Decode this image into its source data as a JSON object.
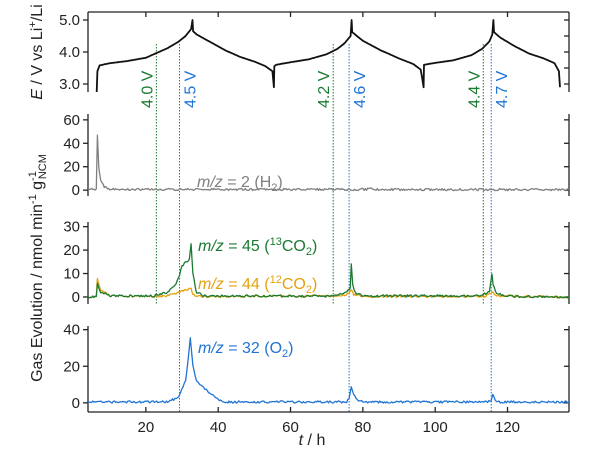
{
  "chart_data": {
    "type": "line",
    "xlabel": "t / h",
    "xlim": [
      4,
      137
    ],
    "xticks": [
      20,
      40,
      60,
      80,
      100,
      120
    ],
    "shared_ylabel": "Gas Evolution / nmol min-1 g-1 NCM",
    "colors": {
      "voltage": "#111111",
      "h2": "#7f7f7f",
      "co2_13": "#1b7a32",
      "co2_12": "#e3a20f",
      "o2": "#1f74d4",
      "green_marker": "#1b7a32",
      "blue_marker": "#1f74d4"
    },
    "markers": [
      {
        "label": "4.0 V",
        "t": 22.9,
        "color": "green"
      },
      {
        "label": "4.5 V",
        "t": 29.3,
        "color": "blue"
      },
      {
        "label": "4.2 V",
        "t": 71.8,
        "color": "green"
      },
      {
        "label": "4.6 V",
        "t": 76.2,
        "color": "blue"
      },
      {
        "label": "4.4 V",
        "t": 113.3,
        "color": "green"
      },
      {
        "label": "4.7 V",
        "t": 115.5,
        "color": "blue"
      }
    ],
    "panels": [
      {
        "ylabel": "E / V vs Li+/Li",
        "ylim": [
          2.75,
          5.25
        ],
        "yticks": [
          "3.0",
          "4.0",
          "5.0"
        ],
        "series": [
          {
            "key": "voltage",
            "points": [
              [
                6.4,
                2.75
              ],
              [
                6.6,
                3.4
              ],
              [
                7.2,
                3.58
              ],
              [
                10,
                3.65
              ],
              [
                15,
                3.72
              ],
              [
                20,
                3.82
              ],
              [
                23,
                3.97
              ],
              [
                26,
                4.12
              ],
              [
                29,
                4.32
              ],
              [
                31,
                4.5
              ],
              [
                32.5,
                4.72
              ],
              [
                32.9,
                5.0
              ],
              [
                33.05,
                4.65
              ],
              [
                34,
                4.55
              ],
              [
                38,
                4.3
              ],
              [
                42,
                4.05
              ],
              [
                46,
                3.85
              ],
              [
                50,
                3.7
              ],
              [
                53,
                3.56
              ],
              [
                55,
                3.4
              ],
              [
                55.4,
                2.9
              ],
              [
                55.5,
                3.55
              ],
              [
                56,
                3.6
              ],
              [
                60,
                3.68
              ],
              [
                65,
                3.77
              ],
              [
                70,
                3.93
              ],
              [
                73,
                4.1
              ],
              [
                75,
                4.28
              ],
              [
                76.6,
                4.5
              ],
              [
                76.9,
                5.0
              ],
              [
                77.05,
                4.62
              ],
              [
                80,
                4.35
              ],
              [
                85,
                4.05
              ],
              [
                90,
                3.8
              ],
              [
                94,
                3.62
              ],
              [
                96,
                3.45
              ],
              [
                96.8,
                2.9
              ],
              [
                96.9,
                3.6
              ],
              [
                100,
                3.66
              ],
              [
                105,
                3.74
              ],
              [
                110,
                3.9
              ],
              [
                113,
                4.1
              ],
              [
                115,
                4.33
              ],
              [
                115.8,
                4.55
              ],
              [
                116.1,
                5.0
              ],
              [
                116.25,
                4.62
              ],
              [
                118,
                4.45
              ],
              [
                122,
                4.18
              ],
              [
                126,
                3.95
              ],
              [
                130,
                3.8
              ],
              [
                133,
                3.65
              ],
              [
                134.2,
                3.4
              ],
              [
                134.5,
                2.9
              ]
            ]
          }
        ]
      },
      {
        "ylim": [
          -5,
          65
        ],
        "yticks": [
          "0",
          "20",
          "40",
          "60"
        ],
        "series": [
          {
            "key": "h2",
            "label": "m/z = 2 (H2)",
            "points": [
              [
                4,
                0.5
              ],
              [
                6.3,
                0.5
              ],
              [
                6.6,
                47
              ],
              [
                7,
                20
              ],
              [
                7.5,
                8
              ],
              [
                8.5,
                3
              ],
              [
                10,
                1.2
              ],
              [
                15,
                0.6
              ],
              [
                81,
                0.6
              ],
              [
                82,
                1.8
              ],
              [
                83,
                0.6
              ],
              [
                137,
                0.4
              ]
            ]
          }
        ]
      },
      {
        "ylim": [
          -3,
          32
        ],
        "yticks": [
          "0",
          "10",
          "20",
          "30"
        ],
        "series": [
          {
            "key": "co2_12",
            "label": "m/z = 44 (12CO2)",
            "points": [
              [
                4,
                0
              ],
              [
                6.3,
                0
              ],
              [
                6.6,
                8
              ],
              [
                7.5,
                3
              ],
              [
                10,
                0.5
              ],
              [
                25,
                0.3
              ],
              [
                28,
                1.5
              ],
              [
                31,
                3
              ],
              [
                32.5,
                4
              ],
              [
                33,
                1
              ],
              [
                35,
                0.2
              ],
              [
                75,
                0.5
              ],
              [
                76.8,
                3
              ],
              [
                77.5,
                1
              ],
              [
                80,
                0.2
              ],
              [
                114,
                0.3
              ],
              [
                115.8,
                2
              ],
              [
                117,
                0.5
              ],
              [
                137,
                0
              ]
            ]
          },
          {
            "key": "co2_13",
            "label": "m/z = 45 (13CO2)",
            "points": [
              [
                4,
                0
              ],
              [
                6.3,
                0
              ],
              [
                6.6,
                6
              ],
              [
                7.5,
                2
              ],
              [
                10,
                0.5
              ],
              [
                22,
                0.5
              ],
              [
                26,
                2
              ],
              [
                28,
                5
              ],
              [
                29,
                8
              ],
              [
                30,
                13
              ],
              [
                31,
                15
              ],
              [
                32,
                16
              ],
              [
                32.5,
                23
              ],
              [
                33,
                10
              ],
              [
                34,
                2
              ],
              [
                36,
                0.5
              ],
              [
                70,
                0.3
              ],
              [
                75,
                1.5
              ],
              [
                76.5,
                4
              ],
              [
                76.8,
                14
              ],
              [
                77.2,
                5
              ],
              [
                78,
                1.5
              ],
              [
                80,
                0.5
              ],
              [
                112,
                0.5
              ],
              [
                115,
                2
              ],
              [
                115.7,
                10
              ],
              [
                116,
                5
              ],
              [
                117,
                1.5
              ],
              [
                120,
                0.3
              ],
              [
                137,
                0
              ]
            ]
          }
        ]
      },
      {
        "ylim": [
          -5,
          42
        ],
        "yticks": [
          "0",
          "20",
          "40"
        ],
        "series": [
          {
            "key": "o2",
            "label": "m/z = 32 (O2)",
            "points": [
              [
                4,
                0.5
              ],
              [
                26,
                0.5
              ],
              [
                29,
                3
              ],
              [
                31,
                12
              ],
              [
                32.3,
                35
              ],
              [
                33,
                20
              ],
              [
                34,
                12
              ],
              [
                36,
                8
              ],
              [
                38,
                5
              ],
              [
                40,
                2
              ],
              [
                42,
                0.5
              ],
              [
                75.5,
                0.5
              ],
              [
                76.2,
                2
              ],
              [
                76.8,
                9
              ],
              [
                77.5,
                4
              ],
              [
                79,
                1
              ],
              [
                81,
                0.5
              ],
              [
                114.5,
                0.5
              ],
              [
                115.5,
                1
              ],
              [
                115.9,
                5
              ],
              [
                116.5,
                1.5
              ],
              [
                118,
                0.5
              ],
              [
                137,
                0.5
              ]
            ]
          }
        ]
      }
    ]
  }
}
